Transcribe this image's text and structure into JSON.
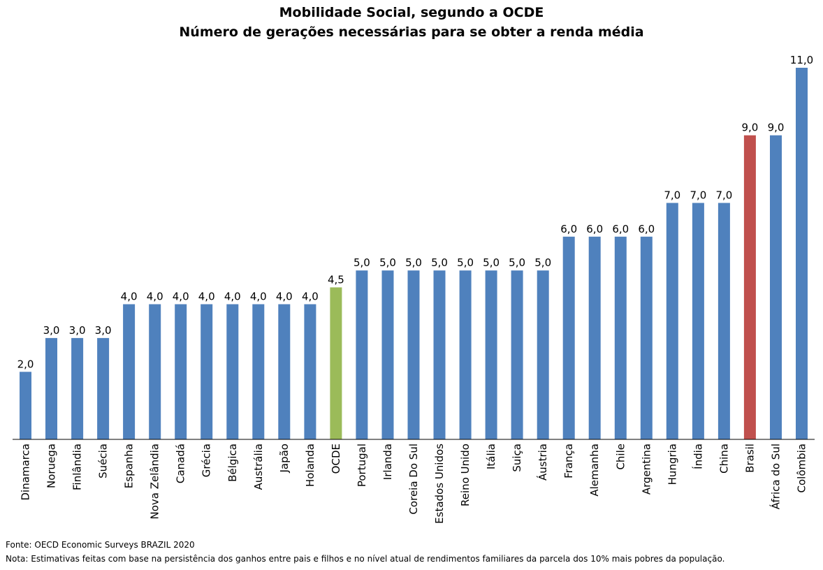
{
  "header": {
    "title": "Mobilidade Social, segundo a OCDE",
    "subtitle": "Número de gerações necessárias para se obter a renda média"
  },
  "footer": {
    "source": "Fonte: OECD Economic Surveys BRAZIL 2020",
    "note": "Nota: Estimativas feitas com base na persistência dos ganhos entre pais e filhos e no nível atual de rendimentos familiares da parcela dos 10% mais pobres da população."
  },
  "colors": {
    "default": "#4F81BD",
    "ocde": "#9BBB59",
    "brasil": "#C0504D"
  },
  "chart_data": {
    "type": "bar",
    "title": "Mobilidade Social, segundo a OCDE",
    "subtitle": "Número de gerações necessárias para se obter a renda média",
    "xlabel": "",
    "ylabel": "",
    "ylim": [
      0,
      11
    ],
    "grid": false,
    "legend": "none",
    "categories": [
      "Dinamarca",
      "Noruega",
      "Finlândia",
      "Suécia",
      "Espanha",
      "Nova Zelândia",
      "Canadá",
      "Grécia",
      "Bélgica",
      "Austrália",
      "Japão",
      "Holanda",
      "OCDE",
      "Portugal",
      "Irlanda",
      "Coreia Do Sul",
      "Estados Unidos",
      "Reino Unido",
      "Itália",
      "Suiça",
      "Áustria",
      "França",
      "Alemanha",
      "Chile",
      "Argentina",
      "Hungria",
      "Índia",
      "China",
      "Brasil",
      "África do Sul",
      "Colômbia"
    ],
    "values": [
      2.0,
      3.0,
      3.0,
      3.0,
      4.0,
      4.0,
      4.0,
      4.0,
      4.0,
      4.0,
      4.0,
      4.0,
      4.5,
      5.0,
      5.0,
      5.0,
      5.0,
      5.0,
      5.0,
      5.0,
      5.0,
      6.0,
      6.0,
      6.0,
      6.0,
      7.0,
      7.0,
      7.0,
      9.0,
      9.0,
      11.0
    ],
    "data_labels": [
      "2,0",
      "3,0",
      "3,0",
      "3,0",
      "4,0",
      "4,0",
      "4,0",
      "4,0",
      "4,0",
      "4,0",
      "4,0",
      "4,0",
      "4,5",
      "5,0",
      "5,0",
      "5,0",
      "5,0",
      "5,0",
      "5,0",
      "5,0",
      "5,0",
      "6,0",
      "6,0",
      "6,0",
      "6,0",
      "7,0",
      "7,0",
      "7,0",
      "9,0",
      "9,0",
      "11,0"
    ],
    "highlight": {
      "OCDE": "#9BBB59",
      "Brasil": "#C0504D"
    }
  }
}
